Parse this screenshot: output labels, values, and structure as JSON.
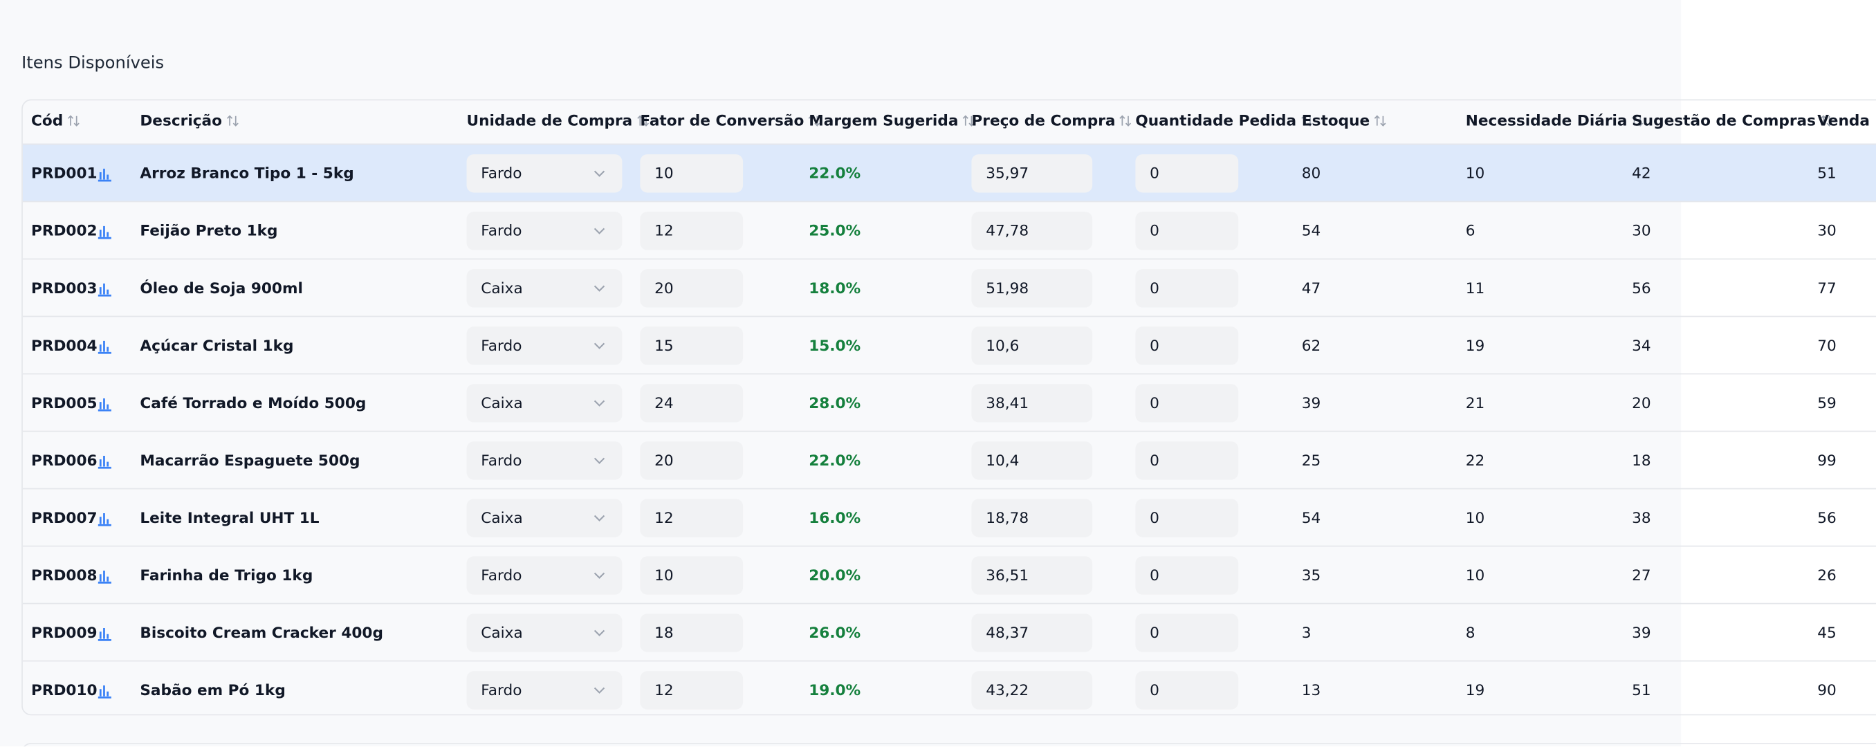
{
  "title": "Itens Disponíveis",
  "table": {
    "headers": [
      "Cód",
      "Descrição",
      "Unidade de Compra",
      "Fator de Conversão",
      "Margem Sugerida",
      "Preço de Compra",
      "Quantidade Pedida",
      "Estoque",
      "Necessidade Diária",
      "Sugestão de Compras",
      "Venda Ú"
    ],
    "rows": [
      [
        "PRD001",
        "Arroz Branco Tipo 1 - 5kg",
        "Fardo",
        "10",
        "22.0%",
        "35,97",
        "0",
        "80",
        "10",
        "42",
        "51"
      ],
      [
        "PRD002",
        "Feijão Preto 1kg",
        "Fardo",
        "12",
        "25.0%",
        "47,78",
        "0",
        "54",
        "6",
        "30",
        "30"
      ],
      [
        "PRD003",
        "Óleo de Soja 900ml",
        "Caixa",
        "20",
        "18.0%",
        "51,98",
        "0",
        "47",
        "11",
        "56",
        "77"
      ],
      [
        "PRD004",
        "Açúcar Cristal 1kg",
        "Fardo",
        "15",
        "15.0%",
        "10,6",
        "0",
        "62",
        "19",
        "34",
        "70"
      ],
      [
        "PRD005",
        "Café Torrado e Moído 500g",
        "Caixa",
        "24",
        "28.0%",
        "38,41",
        "0",
        "39",
        "21",
        "20",
        "59"
      ],
      [
        "PRD006",
        "Macarrão Espaguete 500g",
        "Fardo",
        "20",
        "22.0%",
        "10,4",
        "0",
        "25",
        "22",
        "18",
        "99"
      ],
      [
        "PRD007",
        "Leite Integral UHT 1L",
        "Caixa",
        "12",
        "16.0%",
        "18,78",
        "0",
        "54",
        "10",
        "38",
        "56"
      ],
      [
        "PRD008",
        "Farinha de Trigo 1kg",
        "Fardo",
        "10",
        "20.0%",
        "36,51",
        "0",
        "35",
        "10",
        "27",
        "26"
      ],
      [
        "PRD009",
        "Biscoito Cream Cracker 400g",
        "Caixa",
        "18",
        "26.0%",
        "48,37",
        "0",
        "3",
        "8",
        "39",
        "45"
      ],
      [
        "PRD010",
        "Sabão em Pó 1kg",
        "Fardo",
        "12",
        "19.0%",
        "43,22",
        "0",
        "13",
        "19",
        "51",
        "90"
      ]
    ]
  }
}
